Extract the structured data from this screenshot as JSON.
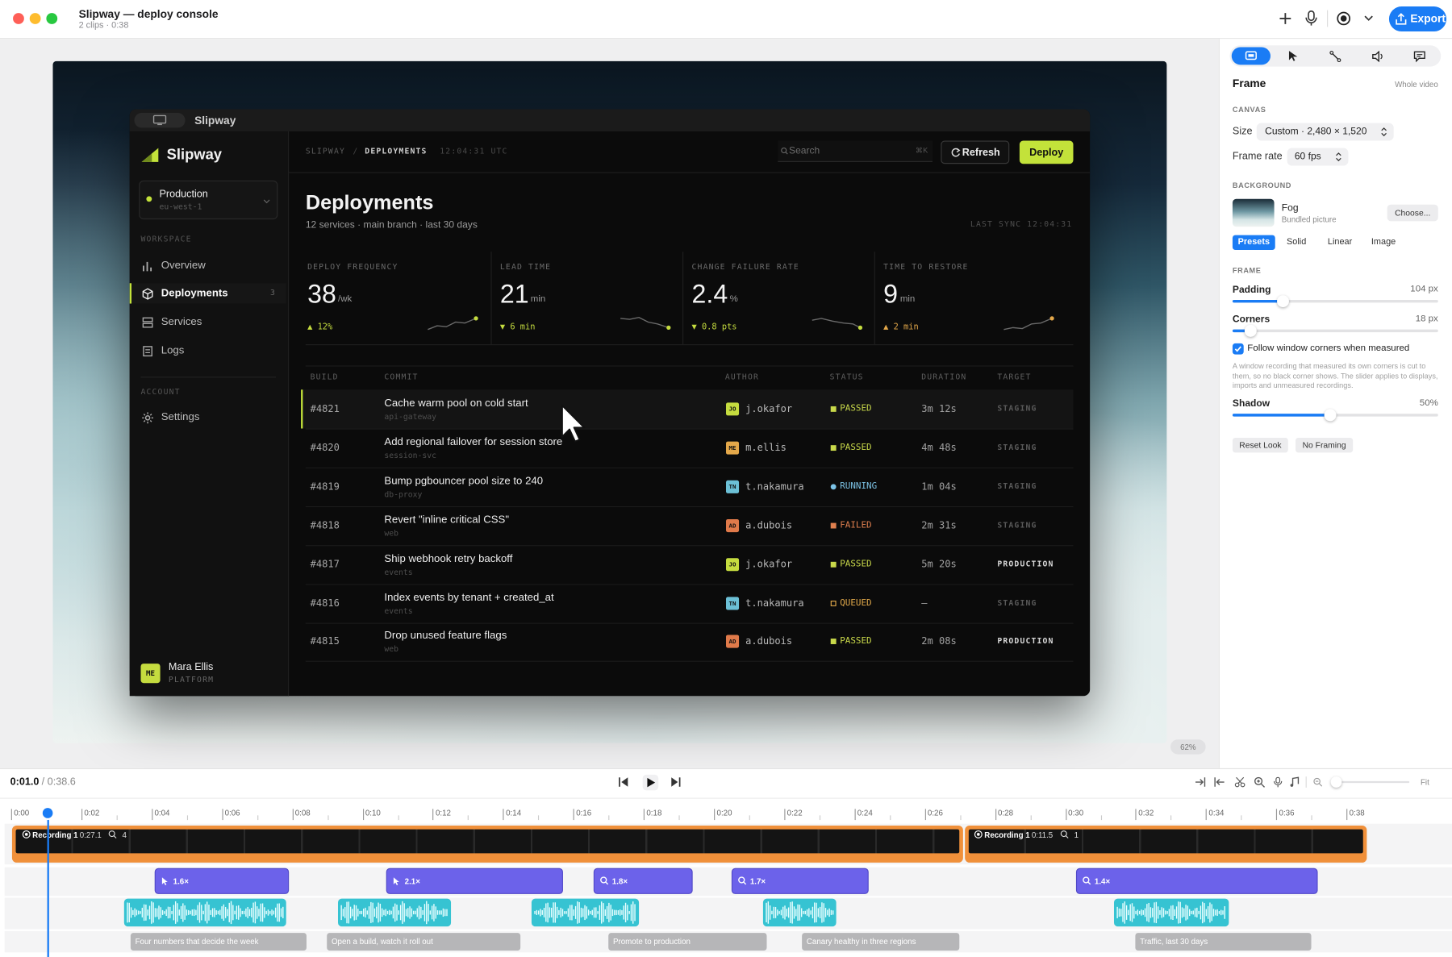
{
  "window": {
    "title": "Slipway — deploy console",
    "subtitle": "2 clips · 0:38",
    "export": "Export"
  },
  "app": {
    "titlebar": "Slipway",
    "brand": "Slipway",
    "environment": {
      "name": "Production",
      "region": "eu-west-1"
    },
    "nav_sections": [
      {
        "heading": "WORKSPACE",
        "items": [
          {
            "label": "Overview"
          },
          {
            "label": "Deployments",
            "count": 3
          },
          {
            "label": "Services"
          },
          {
            "label": "Logs"
          }
        ]
      },
      {
        "heading": "ACCOUNT",
        "items": [
          {
            "label": "Settings"
          }
        ]
      }
    ],
    "user": {
      "initials": "ME",
      "name": "Mara Ellis",
      "role": "PLATFORM"
    },
    "breadcrumb": [
      "SLIPWAY",
      "DEPLOYMENTS"
    ],
    "breadcrumb_separator": "/",
    "clock": "12:04:31 UTC",
    "search": "Search",
    "shortcut": "⌘K",
    "refresh": "Refresh",
    "deploy": "Deploy",
    "page_title": "Deployments",
    "page_subtitle": "12 services · main branch · last 30 days",
    "last_sync": "LAST SYNC 12:04:31",
    "metrics": [
      {
        "label": "DEPLOY FREQUENCY",
        "value": 38,
        "unit": "/wk",
        "delta": "▲ 12%",
        "delta_color": "#c5dc3f"
      },
      {
        "label": "LEAD TIME",
        "value": 21,
        "unit": "min",
        "delta": "▼ 6 min",
        "delta_color": "#c5dc3f"
      },
      {
        "label": "CHANGE FAILURE RATE",
        "value": 2.4,
        "unit": "%",
        "delta": "▼ 0.8 pts",
        "delta_color": "#c5dc3f"
      },
      {
        "label": "TIME TO RESTORE",
        "value": 9,
        "unit": "min",
        "delta": "▲ 2 min",
        "delta_color": "#e4a84a"
      }
    ],
    "table": {
      "columns": [
        "BUILD",
        "COMMIT",
        "AUTHOR",
        "STATUS",
        "DURATION",
        "TARGET"
      ],
      "rows": [
        {
          "build": "#4821",
          "commit": "Cache warm pool on cold start",
          "service": "api-gateway",
          "initials": "JO",
          "avatar_color": "#c5dc3f",
          "author": "j.okafor",
          "status": "PASSED",
          "status_color": "#c9d94a",
          "status_marker": "square",
          "duration": "3m 12s",
          "target": "STAGING",
          "target_color": "#5a5a5a"
        },
        {
          "build": "#4820",
          "commit": "Add regional failover for session store",
          "service": "session-svc",
          "initials": "ME",
          "avatar_color": "#e4a84a",
          "author": "m.ellis",
          "status": "PASSED",
          "status_color": "#c9d94a",
          "status_marker": "square",
          "duration": "4m 48s",
          "target": "STAGING",
          "target_color": "#5a5a5a"
        },
        {
          "build": "#4819",
          "commit": "Bump pgbouncer pool size to 240",
          "service": "db-proxy",
          "initials": "TN",
          "avatar_color": "#6cc0d6",
          "author": "t.nakamura",
          "status": "RUNNING",
          "status_color": "#7cc3e6",
          "status_marker": "dot",
          "duration": "1m 04s",
          "target": "STAGING",
          "target_color": "#5a5a5a"
        },
        {
          "build": "#4818",
          "commit": "Revert \"inline critical CSS\"",
          "service": "web",
          "initials": "AD",
          "avatar_color": "#e07a4a",
          "author": "a.dubois",
          "status": "FAILED",
          "status_color": "#e0804f",
          "status_marker": "square",
          "duration": "2m 31s",
          "target": "STAGING",
          "target_color": "#5a5a5a"
        },
        {
          "build": "#4817",
          "commit": "Ship webhook retry backoff",
          "service": "events",
          "initials": "JO",
          "avatar_color": "#c5dc3f",
          "author": "j.okafor",
          "status": "PASSED",
          "status_color": "#c9d94a",
          "status_marker": "square",
          "duration": "5m 20s",
          "target": "PRODUCTION",
          "target_color": "#d8d8d8"
        },
        {
          "build": "#4816",
          "commit": "Index events by tenant + created_at",
          "service": "events",
          "initials": "TN",
          "avatar_color": "#6cc0d6",
          "author": "t.nakamura",
          "status": "QUEUED",
          "status_color": "#e0a84a",
          "status_marker": "hollow",
          "duration": "–",
          "target": "STAGING",
          "target_color": "#5a5a5a"
        },
        {
          "build": "#4815",
          "commit": "Drop unused feature flags",
          "service": "web",
          "initials": "AD",
          "avatar_color": "#e07a4a",
          "author": "a.dubois",
          "status": "PASSED",
          "status_color": "#c9d94a",
          "status_marker": "square",
          "duration": "2m 08s",
          "target": "PRODUCTION",
          "target_color": "#d8d8d8"
        }
      ]
    }
  },
  "inspector": {
    "section": "Frame",
    "scope": "Whole video",
    "canvas_heading": "CANVAS",
    "size_label": "Size",
    "size_value": "Custom · 2,480 × 1,520",
    "frame_rate_label": "Frame rate",
    "frame_rate_value": "60 fps",
    "background_heading": "BACKGROUND",
    "bg_name": "Fog",
    "bg_source": "Bundled picture",
    "choose": "Choose...",
    "bg_tabs": [
      "Presets",
      "Solid",
      "Linear",
      "Image"
    ],
    "frame_heading": "FRAME",
    "padding": {
      "label": "Padding",
      "value": "104 px"
    },
    "corners": {
      "label": "Corners",
      "value": "18 px"
    },
    "follow": "Follow window corners when measured",
    "follow_note": "A window recording that measured its own corners is cut to them, so no black corner shows. The slider applies to displays, imports and unmeasured recordings.",
    "shadow": {
      "label": "Shadow",
      "value": "50%"
    },
    "buttons": [
      "Reset Look",
      "No Framing"
    ]
  },
  "zoom": "62%",
  "timeline": {
    "current": "0:01.0",
    "total": "/ 0:38.6",
    "fit": "Fit",
    "ticks": [
      "0:00",
      "0:02",
      "0:04",
      "0:06",
      "0:08",
      "0:10",
      "0:12",
      "0:14",
      "0:16",
      "0:18",
      "0:20",
      "0:22",
      "0:24",
      "0:26",
      "0:28",
      "0:30",
      "0:32",
      "0:34",
      "0:36",
      "0:38"
    ],
    "clips": [
      {
        "label": "Recording 1",
        "duration": "0:27.1",
        "zooms": 4
      },
      {
        "label": "Recording 1",
        "duration": "0:11.5",
        "zooms": 1
      }
    ],
    "effects": [
      "1.6×",
      "2.1×",
      "1.8×",
      "1.7×",
      "1.4×"
    ],
    "captions": [
      "Four numbers that decide the week",
      "Open a build, watch it roll out",
      "Promote to production",
      "Canary healthy in three regions",
      "Traffic, last 30 days"
    ]
  }
}
